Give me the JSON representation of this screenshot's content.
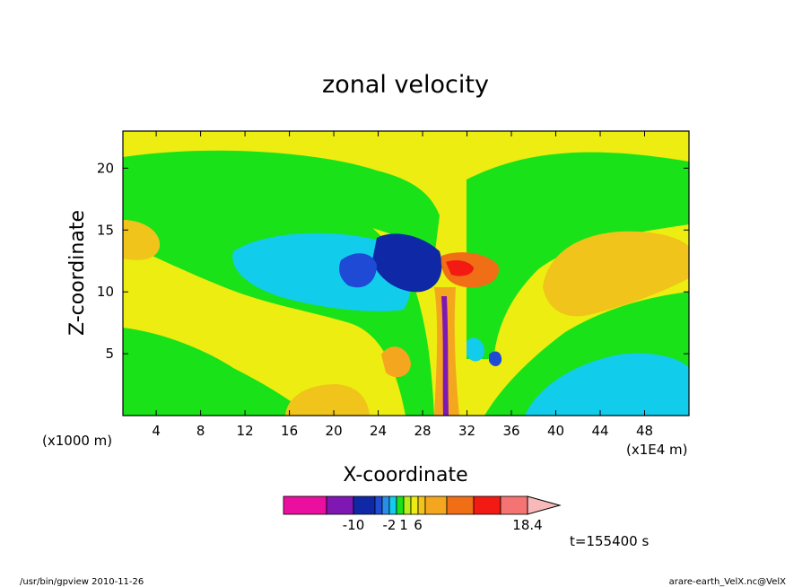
{
  "chart_data": {
    "type": "heatmap",
    "title": "zonal velocity",
    "xlabel": "X-coordinate",
    "ylabel": "Z-coordinate",
    "x_unit_label": "(x1E4 m)",
    "z_unit_label": "(x1000 m)",
    "xlim": [
      1,
      52
    ],
    "ylim": [
      0,
      23
    ],
    "x_ticks": [
      4,
      8,
      12,
      16,
      20,
      24,
      28,
      32,
      36,
      40,
      44,
      48
    ],
    "y_ticks": [
      5,
      10,
      15,
      20
    ],
    "colorbar": {
      "colors": [
        "#ea0f9f",
        "#7f17b2",
        "#0f29a6",
        "#1e4ad6",
        "#2a8de6",
        "#12cceb",
        "#19e219",
        "#b6ee19",
        "#eded12",
        "#f0c41a",
        "#f4a71e",
        "#f06e16",
        "#f21a12",
        "#f47373",
        "#f7b9b9"
      ],
      "tick_labels": [
        "-10",
        "-2",
        "1",
        "6",
        "18.4"
      ],
      "tick_segments": [
        2,
        5,
        7,
        9,
        15
      ]
    },
    "time_label": "t=155400 s",
    "footer_left": "/usr/bin/gpview  2010-11-26",
    "footer_right": "arare-earth_VelX.nc@VelX"
  }
}
